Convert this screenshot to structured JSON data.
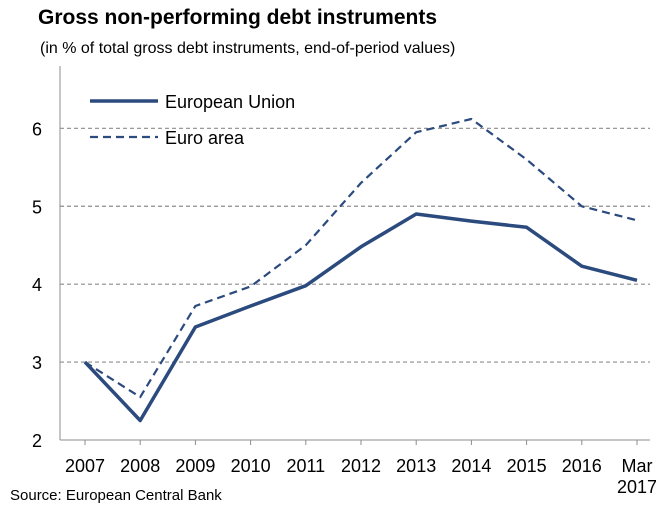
{
  "chart_data": {
    "type": "line",
    "title": "Gross non-performing debt instruments",
    "subtitle": "(in % of total gross debt instruments, end-of-period values)",
    "source": "Source: European Central Bank",
    "categories": [
      "2007",
      "2008",
      "2009",
      "2010",
      "2011",
      "2012",
      "2013",
      "2014",
      "2015",
      "2016",
      "Mar 2017"
    ],
    "ylim": [
      2,
      6.8
    ],
    "yticks": [
      2,
      3,
      4,
      5,
      6
    ],
    "grid": true,
    "legend_position": "top-left",
    "series": [
      {
        "name": "European Union",
        "style": "solid",
        "values": [
          3.0,
          2.25,
          3.45,
          3.72,
          3.98,
          4.48,
          4.9,
          4.81,
          4.73,
          4.23,
          4.05
        ]
      },
      {
        "name": "Euro area",
        "style": "dashed",
        "values": [
          3.0,
          2.55,
          3.72,
          3.97,
          4.5,
          5.3,
          5.95,
          6.12,
          5.6,
          5.0,
          4.82
        ]
      }
    ],
    "colors": {
      "line": "#2b4a7e",
      "grid": "#8c8c8c",
      "axis": "#8c8c8c"
    }
  }
}
